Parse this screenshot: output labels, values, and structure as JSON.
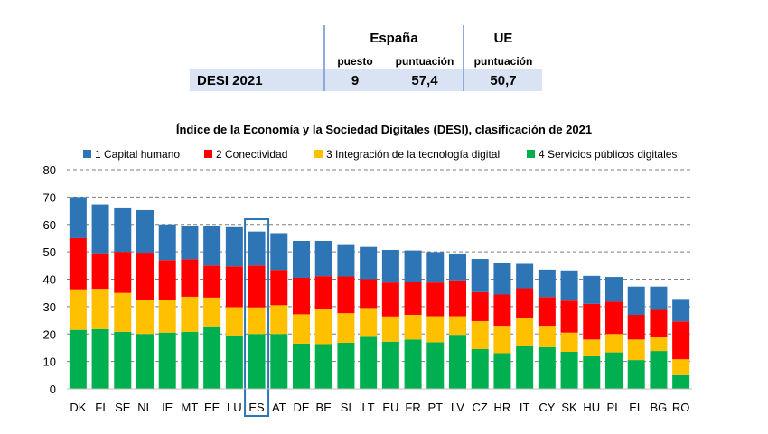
{
  "summary": {
    "spain_header": "España",
    "eu_header": "UE",
    "rank_label": "puesto",
    "score_label": "puntuación",
    "eu_score_label": "puntuación",
    "row_label": "DESI 2021",
    "spain_rank": "9",
    "spain_score": "57,4",
    "eu_score": "50,7"
  },
  "chart_data": {
    "type": "bar",
    "stacked": true,
    "title": "Índice de la Economía y la Sociedad Digitales (DESI), clasificación de 2021",
    "categories": [
      "DK",
      "FI",
      "SE",
      "NL",
      "IE",
      "MT",
      "EE",
      "LU",
      "ES",
      "AT",
      "DE",
      "BE",
      "SI",
      "LT",
      "EU",
      "FR",
      "PT",
      "LV",
      "CZ",
      "HR",
      "IT",
      "CY",
      "SK",
      "HU",
      "PL",
      "EL",
      "BG",
      "RO"
    ],
    "highlight_category": "ES",
    "ylim": [
      0,
      80
    ],
    "yticks": [
      0,
      10,
      20,
      30,
      40,
      50,
      60,
      70,
      80
    ],
    "grid": true,
    "legend_position": "top",
    "series": [
      {
        "name": "4 Servicios públicos digitales",
        "color": "#00b050",
        "values": [
          21.5,
          21.8,
          20.8,
          20.0,
          20.5,
          20.8,
          22.8,
          19.5,
          20.0,
          20.0,
          16.5,
          16.3,
          16.8,
          19.3,
          17.2,
          18.0,
          17.0,
          19.7,
          14.5,
          13.0,
          15.8,
          15.2,
          13.5,
          12.2,
          13.3,
          10.5,
          13.8,
          5.0
        ]
      },
      {
        "name": "3 Integración de la tecnología digital",
        "color": "#ffc000",
        "values": [
          14.8,
          14.7,
          14.2,
          12.5,
          12.0,
          12.8,
          10.5,
          10.3,
          9.7,
          10.5,
          10.7,
          12.8,
          10.8,
          10.2,
          9.2,
          9.0,
          9.5,
          6.8,
          10.2,
          10.0,
          10.2,
          7.8,
          7.0,
          5.8,
          6.7,
          7.5,
          5.2,
          5.8
        ]
      },
      {
        "name": "2 Conectividad",
        "color": "#ff0000",
        "values": [
          18.7,
          13.0,
          15.0,
          17.2,
          14.5,
          13.7,
          11.7,
          14.9,
          15.3,
          12.9,
          13.3,
          12.0,
          13.4,
          10.5,
          12.4,
          11.9,
          12.3,
          13.1,
          10.6,
          11.4,
          10.7,
          10.5,
          11.7,
          13.0,
          11.8,
          9.0,
          9.8,
          13.8
        ]
      },
      {
        "name": "1 Capital humano",
        "color": "#2e75b6",
        "values": [
          15.0,
          17.8,
          16.2,
          15.5,
          13.0,
          12.2,
          14.3,
          14.3,
          12.4,
          13.4,
          13.5,
          12.9,
          11.8,
          11.8,
          11.9,
          11.6,
          11.1,
          9.8,
          12.1,
          11.6,
          8.9,
          10.0,
          11.0,
          10.2,
          9.0,
          10.3,
          8.5,
          8.2
        ]
      }
    ]
  }
}
